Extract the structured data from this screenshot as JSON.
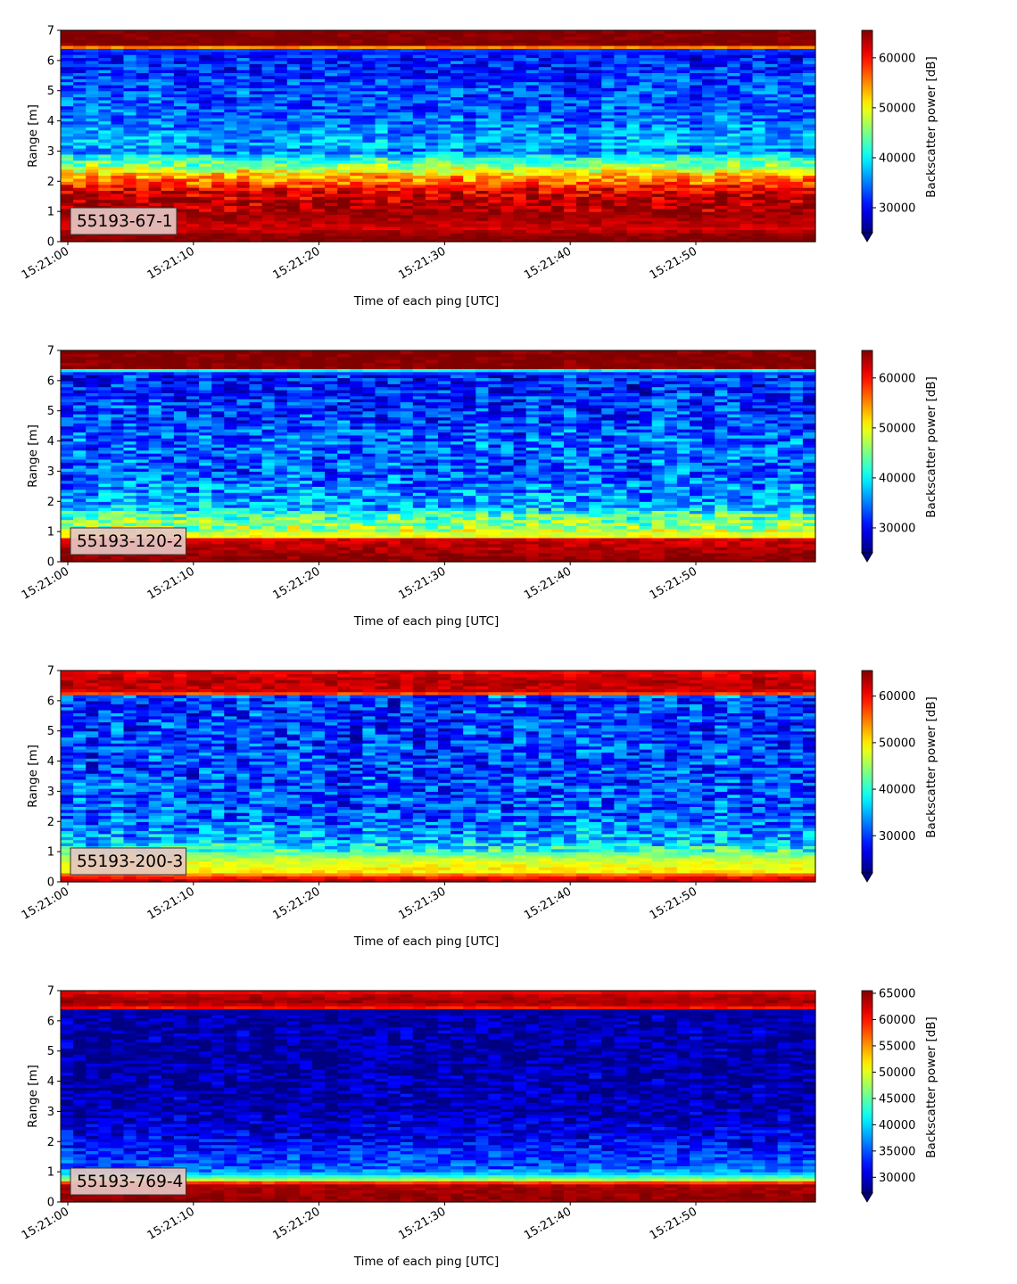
{
  "colorbar_label": "Backscatter power [dB]",
  "chart_data": [
    {
      "type": "heatmap",
      "panel_label": "55193-67-1",
      "xlabel": "Time of each ping [UTC]",
      "ylabel": "Range [m]",
      "xticks": [
        "15:21:00",
        "15:21:10",
        "15:21:20",
        "15:21:30",
        "15:21:40",
        "15:21:50"
      ],
      "yticks": [
        0,
        1,
        2,
        3,
        4,
        5,
        6,
        7
      ],
      "ylim": [
        0,
        7
      ],
      "colorbar": {
        "label": "Backscatter power [dB]",
        "ticks": [
          30000,
          40000,
          50000,
          60000
        ],
        "range": [
          25000,
          65500
        ],
        "colormap": "jet",
        "extend": "min"
      },
      "profile": [
        [
          0.0,
          65500
        ],
        [
          0.2,
          65500
        ],
        [
          0.45,
          62000
        ],
        [
          0.9,
          64500
        ],
        [
          1.3,
          64000
        ],
        [
          1.65,
          62000
        ],
        [
          1.95,
          57000
        ],
        [
          2.25,
          52000
        ],
        [
          2.55,
          45000
        ],
        [
          2.8,
          41000
        ],
        [
          3.0,
          34500
        ],
        [
          3.2,
          37000
        ],
        [
          3.6,
          36000
        ],
        [
          4.1,
          34000
        ],
        [
          5.0,
          33000
        ],
        [
          5.8,
          31500
        ],
        [
          6.3,
          31000
        ],
        [
          6.4,
          34000
        ],
        [
          6.45,
          55000
        ],
        [
          6.5,
          65500
        ],
        [
          7.0,
          65500
        ]
      ],
      "noise": 4500
    },
    {
      "type": "heatmap",
      "panel_label": "55193-120-2",
      "xlabel": "Time of each ping [UTC]",
      "ylabel": "Range [m]",
      "xticks": [
        "15:21:00",
        "15:21:10",
        "15:21:20",
        "15:21:30",
        "15:21:40",
        "15:21:50"
      ],
      "yticks": [
        0,
        1,
        2,
        3,
        4,
        5,
        6,
        7
      ],
      "ylim": [
        0,
        7
      ],
      "colorbar": {
        "label": "Backscatter power [dB]",
        "ticks": [
          30000,
          40000,
          50000,
          60000
        ],
        "range": [
          25000,
          65500
        ],
        "colormap": "jet",
        "extend": "min"
      },
      "profile": [
        [
          0.0,
          65500
        ],
        [
          0.25,
          64500
        ],
        [
          0.75,
          62000
        ],
        [
          0.85,
          50000
        ],
        [
          1.2,
          46000
        ],
        [
          1.6,
          43000
        ],
        [
          1.8,
          37000
        ],
        [
          2.3,
          36000
        ],
        [
          3.0,
          33500
        ],
        [
          4.0,
          34000
        ],
        [
          5.0,
          32000
        ],
        [
          6.2,
          31000
        ],
        [
          6.33,
          33000
        ],
        [
          6.38,
          52000
        ],
        [
          6.42,
          65500
        ],
        [
          7.0,
          65500
        ]
      ],
      "noise": 5500
    },
    {
      "type": "heatmap",
      "panel_label": "55193-200-3",
      "xlabel": "Time of each ping [UTC]",
      "ylabel": "Range [m]",
      "xticks": [
        "15:21:00",
        "15:21:10",
        "15:21:20",
        "15:21:30",
        "15:21:40",
        "15:21:50"
      ],
      "yticks": [
        0,
        1,
        2,
        3,
        4,
        5,
        6,
        7
      ],
      "ylim": [
        0,
        7
      ],
      "colorbar": {
        "label": "Backscatter power [dB]",
        "ticks": [
          30000,
          40000,
          50000,
          60000
        ],
        "range": [
          22000,
          65500
        ],
        "colormap": "jet",
        "extend": "min"
      },
      "profile": [
        [
          0.0,
          64000
        ],
        [
          0.15,
          60000
        ],
        [
          0.35,
          50000
        ],
        [
          0.7,
          48000
        ],
        [
          0.9,
          44000
        ],
        [
          1.2,
          37000
        ],
        [
          1.6,
          34000
        ],
        [
          2.2,
          31000
        ],
        [
          3.0,
          30500
        ],
        [
          4.5,
          30000
        ],
        [
          6.1,
          29500
        ],
        [
          6.18,
          33000
        ],
        [
          6.23,
          55000
        ],
        [
          6.3,
          62000
        ],
        [
          6.7,
          63000
        ],
        [
          7.0,
          60000
        ]
      ],
      "noise": 6000
    },
    {
      "type": "heatmap",
      "panel_label": "55193-769-4",
      "xlabel": "Time of each ping [UTC]",
      "ylabel": "Range [m]",
      "xticks": [
        "15:21:00",
        "15:21:10",
        "15:21:20",
        "15:21:30",
        "15:21:40",
        "15:21:50"
      ],
      "yticks": [
        0,
        1,
        2,
        3,
        4,
        5,
        6,
        7
      ],
      "ylim": [
        0,
        7
      ],
      "colorbar": {
        "label": "Backscatter power [dB]",
        "ticks": [
          30000,
          35000,
          40000,
          45000,
          50000,
          55000,
          60000,
          65000
        ],
        "range": [
          27000,
          65500
        ],
        "colormap": "jet",
        "extend": "min"
      },
      "profile": [
        [
          0.0,
          65000
        ],
        [
          0.2,
          64500
        ],
        [
          0.6,
          63500
        ],
        [
          0.75,
          48000
        ],
        [
          0.9,
          41000
        ],
        [
          1.1,
          35000
        ],
        [
          1.5,
          34000
        ],
        [
          2.2,
          31000
        ],
        [
          3.0,
          29000
        ],
        [
          4.5,
          28500
        ],
        [
          6.35,
          28500
        ],
        [
          6.4,
          40000
        ],
        [
          6.45,
          60000
        ],
        [
          6.6,
          64500
        ],
        [
          6.85,
          63000
        ],
        [
          7.0,
          60000
        ]
      ],
      "noise": 3500
    }
  ]
}
